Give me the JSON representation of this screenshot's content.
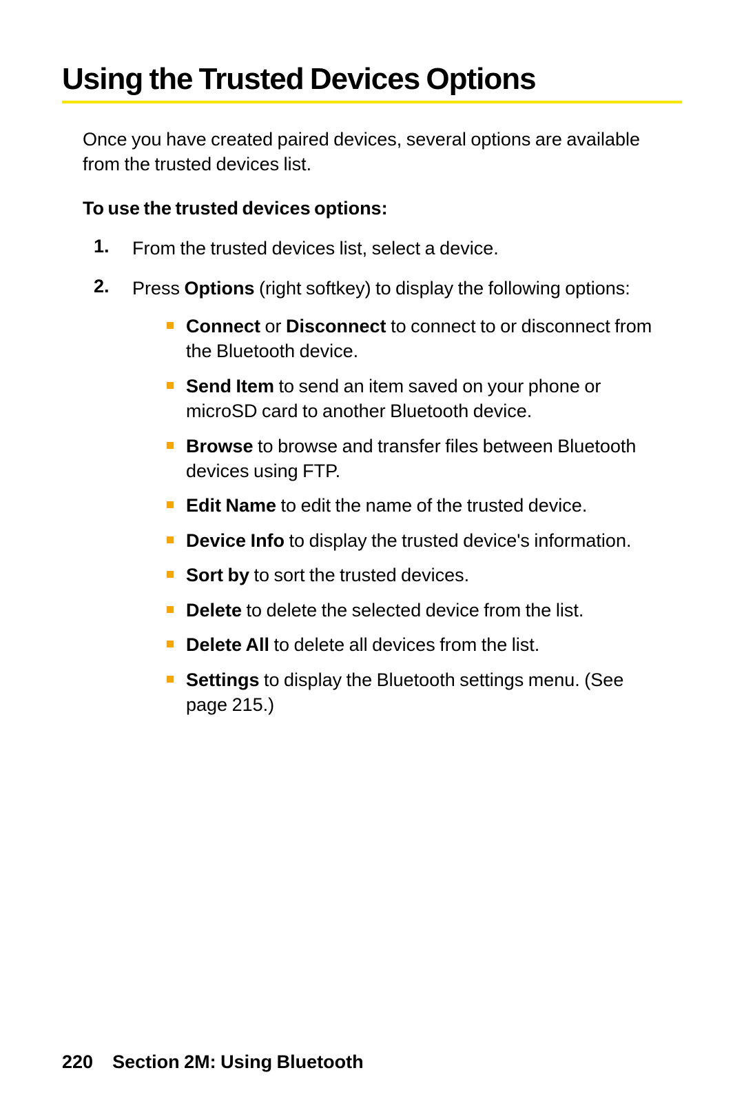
{
  "colors": {
    "accent": "#f7e600",
    "bullet": "#f7a600",
    "text": "#000000",
    "background": "#ffffff"
  },
  "title": "Using the Trusted Devices Options",
  "intro": "Once you have created paired devices, several options are available from the trusted devices list.",
  "subheading": "To use the trusted devices options:",
  "steps": [
    {
      "num": "1.",
      "text": "From the trusted devices list, select a device."
    },
    {
      "num": "2.",
      "prefix": "Press ",
      "bold1": "Options",
      "suffix": " (right softkey) to display the following options:"
    }
  ],
  "options": [
    {
      "bold1": "Connect",
      "mid": " or ",
      "bold2": "Disconnect",
      "rest": " to connect to or disconnect from the Bluetooth device."
    },
    {
      "bold1": "Send Item",
      "rest": " to send an item saved on your phone or microSD card to another Bluetooth device."
    },
    {
      "bold1": "Browse",
      "rest": " to browse and transfer files between Bluetooth devices using FTP."
    },
    {
      "bold1": "Edit Name",
      "rest": " to edit the name of the trusted device."
    },
    {
      "bold1": "Device Info",
      "rest": " to display the trusted device's information."
    },
    {
      "bold1": "Sort by",
      "rest": " to sort the trusted devices."
    },
    {
      "bold1": "Delete",
      "rest": " to delete the selected device from the list."
    },
    {
      "bold1": "Delete All",
      "rest": " to delete all devices from the list."
    },
    {
      "bold1": "Settings",
      "rest": " to display the Bluetooth settings menu. (See page 215.)"
    }
  ],
  "footer": {
    "pagenum": "220",
    "section": "Section 2M: Using Bluetooth"
  }
}
